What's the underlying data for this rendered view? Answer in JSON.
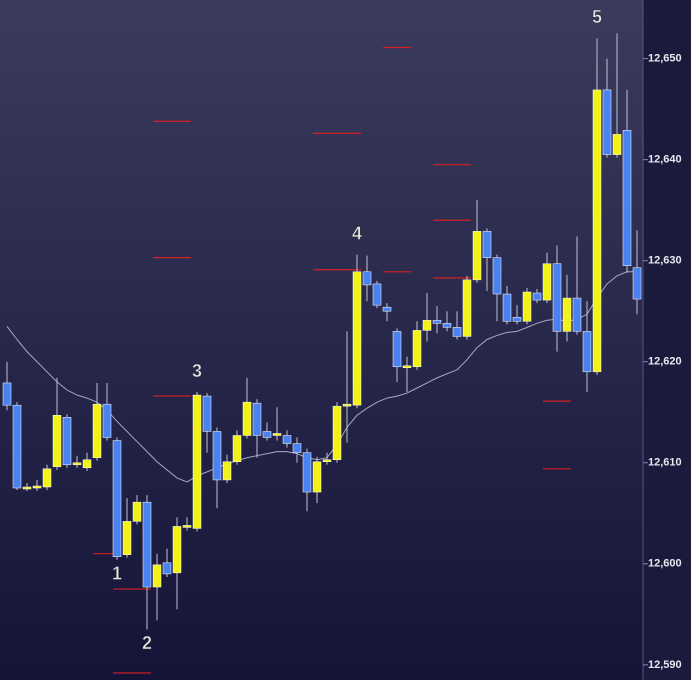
{
  "chart_data": {
    "type": "candlestick",
    "open": [
      12617.9,
      12615.7,
      12607.5,
      12607.5,
      12607.6,
      12609.6,
      12614.5,
      12609.8,
      12609.5,
      12610.5,
      12615.8,
      12612.2,
      12600.9,
      12604.2,
      12606.1,
      12597.7,
      12600.1,
      12599.1,
      12603.6,
      12603.5,
      12616.6,
      12613.1,
      12608.3,
      12610.1,
      12612.7,
      12615.9,
      12613.1,
      12612.7,
      12612.7,
      12611.9,
      12611.0,
      12607.1,
      12610.1,
      12610.3,
      12615.6,
      12615.7,
      12628.9,
      12627.7,
      12625.4,
      12623.0,
      12619.5,
      12619.5,
      12623.1,
      12624.1,
      12623.8,
      12623.4,
      12622.5,
      12628.1,
      12632.9,
      12630.3,
      12626.7,
      12624.4,
      12624.0,
      12626.8,
      12626.1,
      12629.7,
      12623.0,
      12626.3,
      12623.0,
      12619.0,
      12646.9,
      12640.5,
      12642.9,
      12629.3
    ],
    "high": [
      12620.0,
      12616.0,
      12608.0,
      12608.3,
      12609.8,
      12618.4,
      12614.8,
      12610.7,
      12611.0,
      12617.9,
      12617.9,
      12612.5,
      12606.5,
      12606.8,
      12606.8,
      12601.0,
      12601.5,
      12604.6,
      12604.6,
      12617.0,
      12616.9,
      12613.5,
      12610.8,
      12613.2,
      12618.4,
      12616.3,
      12614.0,
      12615.5,
      12613.2,
      12612.5,
      12611.4,
      12610.6,
      12611.0,
      12616.0,
      12623.0,
      12630.6,
      12630.5,
      12628.0,
      12625.8,
      12623.3,
      12620.5,
      12624.0,
      12626.8,
      12625.5,
      12625.0,
      12625.0,
      12628.5,
      12636.0,
      12633.2,
      12630.6,
      12627.5,
      12625.6,
      12627.3,
      12627.2,
      12630.8,
      12631.5,
      12628.6,
      12632.4,
      12626.0,
      12652.0,
      12650.0,
      12652.5,
      12646.9,
      12633.0
    ],
    "low": [
      12615.2,
      12607.3,
      12607.2,
      12607.2,
      12607.3,
      12609.3,
      12609.5,
      12609.5,
      12609.2,
      12610.2,
      12612.2,
      12600.4,
      12600.6,
      12603.9,
      12593.5,
      12594.4,
      12598.7,
      12595.5,
      12603.3,
      12603.2,
      12611.0,
      12605.5,
      12608.0,
      12609.8,
      12612.4,
      12610.5,
      12612.2,
      12612.2,
      12611.5,
      12610.0,
      12605.2,
      12606.0,
      12609.8,
      12610.0,
      12612.0,
      12615.4,
      12626.0,
      12625.3,
      12624.0,
      12618.0,
      12617.0,
      12619.2,
      12622.0,
      12622.8,
      12623.0,
      12622.2,
      12622.2,
      12627.8,
      12627.0,
      12624.0,
      12623.7,
      12623.7,
      12623.7,
      12625.8,
      12625.8,
      12621.0,
      12622.0,
      12622.7,
      12617.0,
      12618.7,
      12640.2,
      12640.2,
      12628.8,
      12624.7
    ],
    "close": [
      12615.7,
      12607.5,
      12607.6,
      12607.7,
      12609.4,
      12614.7,
      12609.8,
      12610.0,
      12610.3,
      12615.8,
      12612.5,
      12600.7,
      12604.2,
      12606.1,
      12597.7,
      12599.9,
      12599.0,
      12603.7,
      12603.8,
      12616.7,
      12613.1,
      12608.3,
      12610.1,
      12612.7,
      12616.0,
      12612.7,
      12612.5,
      12612.9,
      12611.9,
      12611.0,
      12607.1,
      12610.1,
      12610.3,
      12615.6,
      12615.8,
      12628.9,
      12627.6,
      12625.6,
      12625.0,
      12619.5,
      12619.6,
      12623.1,
      12624.1,
      12623.8,
      12623.4,
      12622.5,
      12628.1,
      12632.9,
      12630.3,
      12626.7,
      12624.0,
      12624.0,
      12626.9,
      12626.1,
      12629.7,
      12623.0,
      12626.3,
      12623.0,
      12619.0,
      12646.9,
      12640.5,
      12642.5,
      12629.5,
      12626.2
    ],
    "up_color": "#f2f216",
    "down_color": "#4a82f0",
    "line": {
      "color": "#a8a8c8",
      "values": [
        12623.5,
        12622.2,
        12621.0,
        12620.0,
        12619.0,
        12618.0,
        12617.2,
        12616.7,
        12616.4,
        12616.0,
        12615.2,
        12614.1,
        12613.1,
        12612.1,
        12611.1,
        12610.1,
        12609.3,
        12608.5,
        12608.1,
        12608.7,
        12609.1,
        12609.5,
        12609.9,
        12610.2,
        12610.5,
        12610.7,
        12610.9,
        12611.1,
        12611.1,
        12610.9,
        12610.5,
        12610.3,
        12610.5,
        12611.8,
        12613.5,
        12614.7,
        12615.4,
        12616.0,
        12616.4,
        12616.6,
        12616.9,
        12617.4,
        12617.9,
        12618.4,
        12618.8,
        12619.2,
        12620.2,
        12621.4,
        12622.2,
        12622.6,
        12622.9,
        12623.0,
        12623.4,
        12623.8,
        12624.1,
        12624.2,
        12624.0,
        12624.2,
        12624.7,
        12626.3,
        12627.7,
        12628.5,
        12628.9,
        12628.9
      ]
    },
    "levels": [
      {
        "x": [
          9,
          11
        ],
        "value": 12601.0
      },
      {
        "x": [
          11,
          14
        ],
        "value": 12589.2
      },
      {
        "x": [
          11,
          14
        ],
        "value": 12597.5
      },
      {
        "x": [
          15,
          18
        ],
        "value": 12643.8
      },
      {
        "x": [
          15,
          18
        ],
        "value": 12630.3
      },
      {
        "x": [
          15,
          18
        ],
        "value": 12616.6
      },
      {
        "x": [
          31,
          35
        ],
        "value": 12642.6
      },
      {
        "x": [
          31,
          35
        ],
        "value": 12629.1
      },
      {
        "x": [
          38,
          40
        ],
        "value": 12651.1
      },
      {
        "x": [
          38,
          40
        ],
        "value": 12628.9
      },
      {
        "x": [
          43,
          46
        ],
        "value": 12639.5
      },
      {
        "x": [
          43,
          46
        ],
        "value": 12634.0
      },
      {
        "x": [
          43,
          46
        ],
        "value": 12628.3
      },
      {
        "x": [
          54,
          56
        ],
        "value": 12616.1
      },
      {
        "x": [
          54,
          56
        ],
        "value": 12609.4
      }
    ],
    "level_color": "#d42020",
    "annotations": [
      {
        "text": "1",
        "index": 11,
        "position": "below"
      },
      {
        "text": "2",
        "index": 14,
        "position": "below"
      },
      {
        "text": "3",
        "index": 19,
        "position": "above"
      },
      {
        "text": "4",
        "index": 35,
        "position": "above"
      },
      {
        "text": "5",
        "index": 59,
        "position": "above"
      }
    ],
    "ylim": [
      12588.5,
      12655.8
    ],
    "yticks": [
      {
        "value": 12590,
        "label": "12,590"
      },
      {
        "value": 12600,
        "label": "12,600"
      },
      {
        "value": 12610,
        "label": "12,610"
      },
      {
        "value": 12620,
        "label": "12,620"
      },
      {
        "value": 12630,
        "label": "12,630"
      },
      {
        "value": 12640,
        "label": "12,640"
      },
      {
        "value": 12650,
        "label": "12,650"
      }
    ]
  }
}
